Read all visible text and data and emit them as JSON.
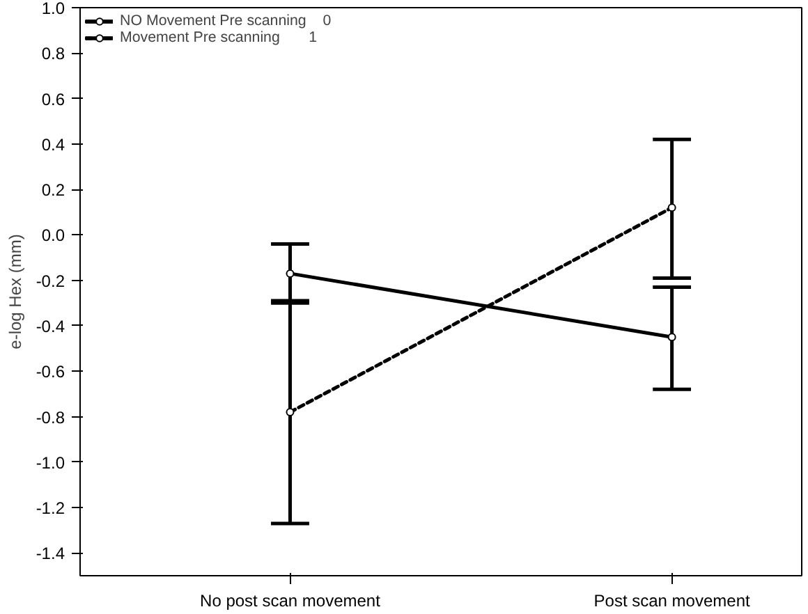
{
  "chart_data": {
    "type": "line",
    "ylabel": "e-log Hex (mm)",
    "categories": [
      "No post scan movement",
      "Post scan movement"
    ],
    "ylim": [
      -1.5,
      1.0
    ],
    "yticks": [
      {
        "value": 1.0,
        "label": "1.0"
      },
      {
        "value": 0.8,
        "label": "0.8"
      },
      {
        "value": 0.6,
        "label": "0.6"
      },
      {
        "value": 0.4,
        "label": "0.4"
      },
      {
        "value": 0.2,
        "label": "0.2"
      },
      {
        "value": 0.0,
        "label": "0.0"
      },
      {
        "value": -0.2,
        "label": "-0.2"
      },
      {
        "value": -0.4,
        "label": "-0.4"
      },
      {
        "value": -0.6,
        "label": "-0.6"
      },
      {
        "value": -0.8,
        "label": "-0.8"
      },
      {
        "value": -1.0,
        "label": "-1.0"
      },
      {
        "value": -1.2,
        "label": "-1.2"
      },
      {
        "value": -1.4,
        "label": "-1.4"
      }
    ],
    "series": [
      {
        "name": "NO Movement Pre scanning    0",
        "color": "#000000",
        "line_style": "solid",
        "values": [
          -0.17,
          -0.45
        ],
        "errors": [
          [
            -0.29,
            -0.04
          ],
          [
            -0.68,
            -0.23
          ]
        ]
      },
      {
        "name": "Movement Pre scanning       1",
        "color": "#000000",
        "line_style": "dashed",
        "values": [
          -0.78,
          0.12
        ],
        "errors": [
          [
            -1.27,
            -0.3
          ],
          [
            -0.19,
            0.42
          ]
        ]
      }
    ],
    "marker": "circle",
    "grid": false,
    "legend": "top left"
  }
}
